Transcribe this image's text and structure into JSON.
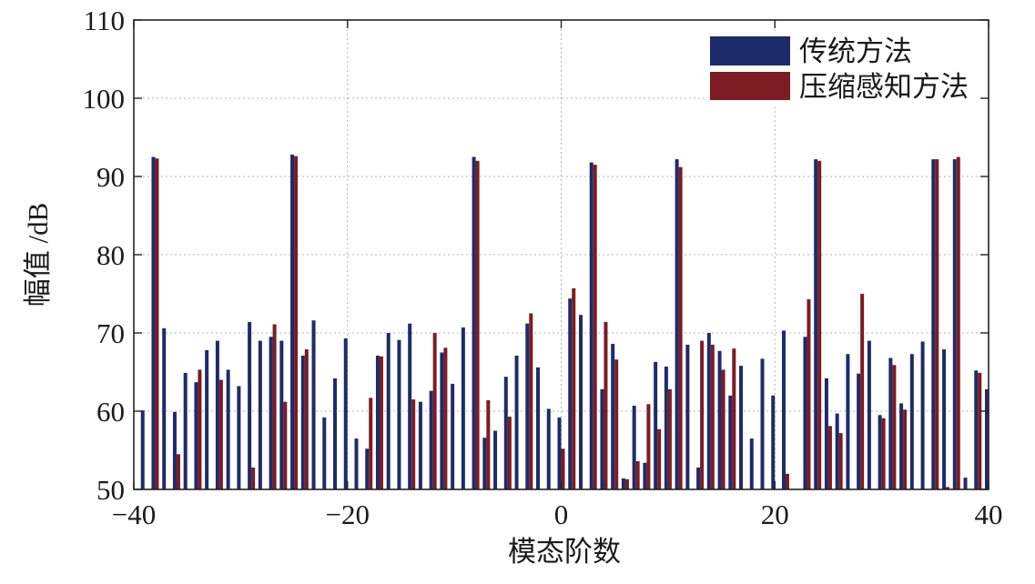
{
  "chart_data": {
    "type": "bar",
    "xlabel": "模态阶数",
    "ylabel": "幅值 /dB",
    "xlim": [
      -40,
      40
    ],
    "ylim": [
      50,
      110
    ],
    "xticks": [
      -40,
      -20,
      0,
      20,
      40
    ],
    "xticklabels": [
      "−40",
      "−20",
      "0",
      "20",
      "40"
    ],
    "yticks": [
      50,
      60,
      70,
      80,
      90,
      100,
      110
    ],
    "yticklabels": [
      "50",
      "60",
      "70",
      "80",
      "90",
      "100",
      "110"
    ],
    "grid": true,
    "legend_position": "top-right",
    "x": [
      -39,
      -38,
      -37,
      -36,
      -35,
      -34,
      -33,
      -32,
      -31,
      -30,
      -29,
      -28,
      -27,
      -26,
      -25,
      -24,
      -23,
      -22,
      -21,
      -20,
      -19,
      -18,
      -17,
      -16,
      -15,
      -14,
      -13,
      -12,
      -11,
      -10,
      -9,
      -8,
      -7,
      -6,
      -5,
      -4,
      -3,
      -2,
      -1,
      0,
      1,
      2,
      3,
      4,
      5,
      6,
      7,
      8,
      9,
      10,
      11,
      12,
      13,
      14,
      15,
      16,
      17,
      18,
      19,
      20,
      21,
      22,
      23,
      24,
      25,
      26,
      27,
      28,
      29,
      30,
      31,
      32,
      33,
      34,
      35,
      36,
      37,
      38,
      39,
      40
    ],
    "series": [
      {
        "name": "传统方法",
        "color": "#1e2b6a",
        "values": [
          60.1,
          92.5,
          70.6,
          59.9,
          64.9,
          63.7,
          67.8,
          69.0,
          65.3,
          63.2,
          71.4,
          69.0,
          69.5,
          69.0,
          92.8,
          67.1,
          71.6,
          59.2,
          64.2,
          69.3,
          56.5,
          55.2,
          67.1,
          70.0,
          69.1,
          71.2,
          61.2,
          62.6,
          67.5,
          63.5,
          70.7,
          92.5,
          56.6,
          57.5,
          64.4,
          67.1,
          71.2,
          65.6,
          60.3,
          59.2,
          74.4,
          72.3,
          91.8,
          62.8,
          68.6,
          51.4,
          60.7,
          53.4,
          66.3,
          65.7,
          92.2,
          68.5,
          52.8,
          70.0,
          67.7,
          62.0,
          65.8,
          56.5,
          66.7,
          62.0,
          70.3,
          null,
          69.5,
          92.2,
          64.2,
          59.7,
          67.3,
          64.8,
          69.0,
          59.5,
          66.8,
          61.0,
          67.3,
          68.9,
          92.2,
          67.9,
          92.2,
          51.5,
          65.2,
          62.8
        ]
      },
      {
        "name": "压缩感知方法",
        "color": "#7c1c22",
        "values": [
          null,
          92.3,
          null,
          54.5,
          null,
          65.3,
          null,
          64.0,
          null,
          null,
          52.8,
          null,
          71.1,
          61.2,
          92.6,
          67.9,
          null,
          null,
          null,
          null,
          null,
          61.7,
          67.0,
          null,
          null,
          61.5,
          null,
          70.0,
          68.1,
          null,
          null,
          92.0,
          61.4,
          null,
          59.3,
          null,
          72.5,
          null,
          null,
          55.2,
          75.7,
          null,
          91.5,
          71.4,
          66.6,
          51.3,
          53.6,
          60.9,
          57.7,
          62.8,
          91.2,
          null,
          69.0,
          68.5,
          65.3,
          68.0,
          null,
          null,
          null,
          null,
          52.0,
          null,
          74.3,
          92.0,
          58.1,
          57.2,
          null,
          75.0,
          null,
          59.1,
          65.9,
          60.2,
          null,
          null,
          92.2,
          50.3,
          92.5,
          null,
          64.9,
          null
        ]
      }
    ]
  }
}
